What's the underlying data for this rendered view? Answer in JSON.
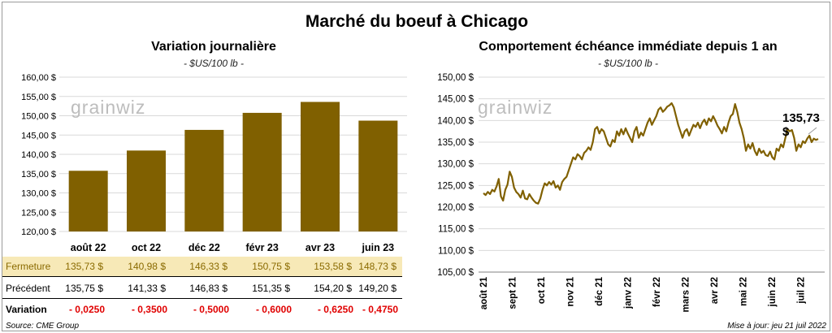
{
  "main_title": "Marché du boeuf à Chicago",
  "left": {
    "title": "Variation  journalière",
    "subtitle": "- $US/100 lb -",
    "watermark": "grainwiz",
    "chart_data": {
      "type": "bar",
      "categories": [
        "août 22",
        "oct 22",
        "déc 22",
        "févr 23",
        "avr 23",
        "juin 23"
      ],
      "values": [
        135.73,
        140.98,
        146.33,
        150.75,
        153.58,
        148.73
      ],
      "ylim": [
        120,
        160
      ],
      "yticks": [
        "120,00 $",
        "125,00 $",
        "130,00 $",
        "135,00 $",
        "140,00 $",
        "145,00 $",
        "150,00 $",
        "155,00 $",
        "160,00 $"
      ],
      "bar_color": "#806000"
    },
    "table": {
      "close_label": "Fermeture",
      "close": [
        "135,73  $",
        "140,98  $",
        "146,33  $",
        "150,75  $",
        "153,58  $",
        "148,73  $"
      ],
      "prev_label": "Précédent",
      "prev": [
        "135,75  $",
        "141,33  $",
        "146,83  $",
        "151,35  $",
        "154,20  $",
        "149,20  $"
      ],
      "var_label": "Variation",
      "var": [
        "- 0,0250",
        "- 0,3500",
        "- 0,5000",
        "- 0,6000",
        "- 0,6250",
        "- 0,4750"
      ]
    },
    "source": "Source: CME Group"
  },
  "right": {
    "title": "Comportement  échéance immédiate depuis 1 an",
    "subtitle": "- $US/100 lb -",
    "watermark": "grainwiz",
    "last_label": "135,73 $",
    "update": "Mise à jour: jeu 21 juil 2022",
    "chart_data": {
      "type": "line",
      "ylim": [
        105,
        150
      ],
      "yticks": [
        "105,00 $",
        "110,00 $",
        "115,00 $",
        "120,00 $",
        "125,00 $",
        "130,00 $",
        "135,00 $",
        "140,00 $",
        "145,00 $",
        "150,00 $"
      ],
      "xticks": [
        "août 21",
        "sept 21",
        "oct 21",
        "nov 21",
        "déc 21",
        "janv 22",
        "févr 22",
        "mars 22",
        "avr 22",
        "mai 22",
        "juin 22",
        "juil 22"
      ],
      "line_color": "#806000",
      "series": [
        {
          "values": [
            123.2,
            122.8,
            123.5,
            123.0,
            124.0,
            123.6,
            124.8,
            126.5,
            122.5,
            121.5,
            124.0,
            125.2,
            128.2,
            127.0,
            124.5,
            123.5,
            123.0,
            122.2,
            123.8,
            122.0,
            121.8,
            123.0,
            122.2,
            121.5,
            121.0,
            120.8,
            122.0,
            124.0,
            125.5,
            125.0,
            125.8,
            125.2,
            126.0,
            124.5,
            125.0,
            124.0,
            125.8,
            126.5,
            127.0,
            128.5,
            130.0,
            131.5,
            131.0,
            132.2,
            131.8,
            131.0,
            132.5,
            133.0,
            133.8,
            133.2,
            135.0,
            138.0,
            138.5,
            137.0,
            138.0,
            137.5,
            136.0,
            134.5,
            134.0,
            135.5,
            135.0,
            137.5,
            136.5,
            138.0,
            136.8,
            138.2,
            137.0,
            136.0,
            135.0,
            137.5,
            138.5,
            136.0,
            137.2,
            136.5,
            138.0,
            139.5,
            140.5,
            139.0,
            140.0,
            141.0,
            142.5,
            143.0,
            142.0,
            142.5,
            143.2,
            143.5,
            144.0,
            143.0,
            141.0,
            139.0,
            137.5,
            136.0,
            137.5,
            138.0,
            136.5,
            137.8,
            139.0,
            138.5,
            139.5,
            138.2,
            139.5,
            140.2,
            139.0,
            140.5,
            139.8,
            141.0,
            140.0,
            138.8,
            138.0,
            137.0,
            138.5,
            137.5,
            139.5,
            141.0,
            141.5,
            143.8,
            142.0,
            139.5,
            138.0,
            136.0,
            133.0,
            134.5,
            133.5,
            134.8,
            133.0,
            132.0,
            133.5,
            132.5,
            133.0,
            132.0,
            131.8,
            132.8,
            131.5,
            131.0,
            133.5,
            133.0,
            134.5,
            133.8,
            136.0,
            138.0,
            137.5,
            137.8,
            136.0,
            133.0,
            134.5,
            133.8,
            135.2,
            134.8,
            135.8,
            136.5,
            135.0,
            135.8,
            135.5,
            135.73
          ]
        }
      ]
    }
  }
}
